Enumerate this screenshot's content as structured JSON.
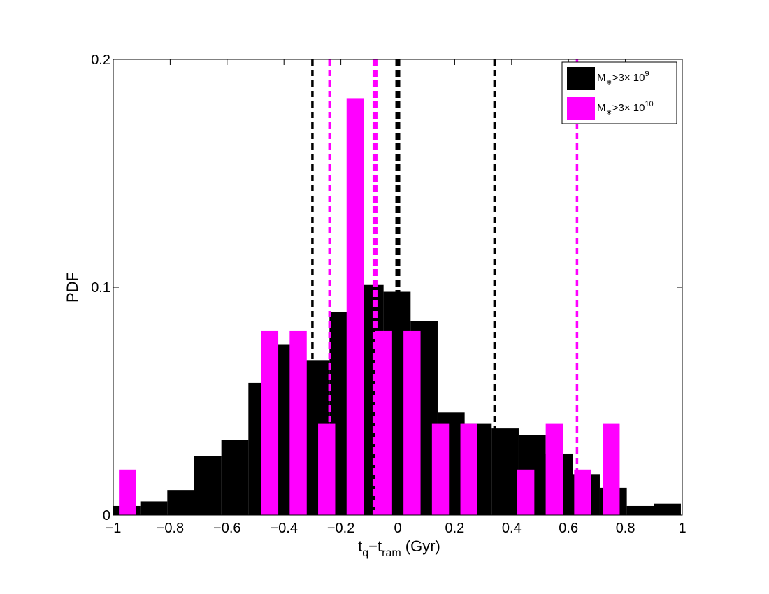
{
  "chart_data": {
    "type": "bar",
    "title": "",
    "xlabel": "t_q−t_ram (Gyr)",
    "xlabel_parts": {
      "t1": "t",
      "s1": "q",
      "dash": "−t",
      "s2": "ram",
      "unit": " (Gyr)"
    },
    "ylabel": "PDF",
    "xlim": [
      -1,
      1
    ],
    "ylim": [
      0,
      0.2
    ],
    "xticks": [
      -1,
      -0.8,
      -0.6,
      -0.4,
      -0.2,
      0,
      0.2,
      0.4,
      0.6,
      0.8,
      1
    ],
    "xtick_labels": [
      "−1",
      "−0.8",
      "−0.6",
      "−0.4",
      "−0.2",
      "0",
      "0.2",
      "0.4",
      "0.6",
      "0.8",
      "1"
    ],
    "yticks": [
      0,
      0.1,
      0.2
    ],
    "ytick_labels": [
      "0",
      "0.1",
      "0.2"
    ],
    "grid": false,
    "legend_position": "top-right",
    "series": [
      {
        "name": "M∗>3× 10^9",
        "legend": {
          "base": "M",
          "sub": "∗",
          "mid": ">3× 10",
          "sup": "9"
        },
        "color": "#000000",
        "bin_width": 0.095,
        "x": [
          -0.9525,
          -0.8575,
          -0.7625,
          -0.6675,
          -0.5725,
          -0.4775,
          -0.3825,
          -0.2875,
          -0.1925,
          -0.0975,
          -0.0025,
          0.0925,
          0.1875,
          0.2825,
          0.3775,
          0.4725,
          0.5675,
          0.6625,
          0.7575,
          0.8525,
          0.9475
        ],
        "values": [
          0.004,
          0.006,
          0.011,
          0.026,
          0.033,
          0.058,
          0.075,
          0.068,
          0.089,
          0.101,
          0.098,
          0.085,
          0.045,
          0.04,
          0.038,
          0.035,
          0.027,
          0.018,
          0.012,
          0.004,
          0.005
        ]
      },
      {
        "name": "M∗>3× 10^10",
        "legend": {
          "base": "M",
          "sub": "∗",
          "mid": ">3× 10",
          "sup": "10"
        },
        "color": "#ff00ff",
        "bin_width": 0.06,
        "x": [
          -0.95,
          -0.45,
          -0.35,
          -0.25,
          -0.15,
          -0.05,
          0.05,
          0.15,
          0.25,
          0.45,
          0.55,
          0.65,
          0.75
        ],
        "values": [
          0.02,
          0.081,
          0.081,
          0.04,
          0.183,
          0.081,
          0.081,
          0.04,
          0.04,
          0.02,
          0.04,
          0.02,
          0.04
        ]
      }
    ],
    "vlines": [
      {
        "x": -0.3,
        "color": "#000000",
        "style": "dashed",
        "weight": "thin"
      },
      {
        "x": 0.0,
        "color": "#000000",
        "style": "dashed",
        "weight": "thick"
      },
      {
        "x": 0.34,
        "color": "#000000",
        "style": "dashed",
        "weight": "thin"
      },
      {
        "x": -0.24,
        "color": "#ff00ff",
        "style": "dashed",
        "weight": "thin"
      },
      {
        "x": -0.08,
        "color": "#ff00ff",
        "style": "dashed",
        "weight": "thick"
      },
      {
        "x": 0.63,
        "color": "#ff00ff",
        "style": "dashed",
        "weight": "thin"
      }
    ]
  }
}
